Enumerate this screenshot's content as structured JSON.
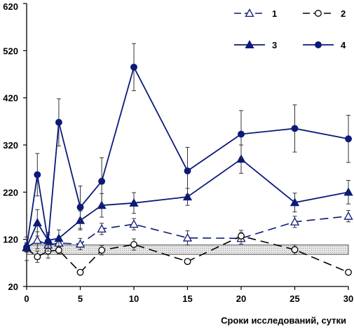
{
  "chart_data": {
    "type": "line",
    "title": "",
    "xlabel": "Сроки исследований, сутки",
    "ylabel": "",
    "xlim": [
      0,
      30
    ],
    "ylim": [
      20,
      620
    ],
    "xticks": [
      0,
      5,
      10,
      15,
      20,
      25,
      30
    ],
    "yticks": [
      20,
      120,
      220,
      320,
      420,
      520,
      620
    ],
    "x_tick_labels": [
      "0",
      "5",
      "10",
      "15",
      "20",
      "25",
      "30"
    ],
    "y_tick_labels": [
      "20",
      "120",
      "220",
      "320",
      "420",
      "520",
      "620"
    ],
    "reference_band": {
      "from": 88,
      "to": 108
    },
    "grid": false,
    "legend_position": "top-right",
    "x": [
      0,
      1,
      2,
      3,
      5,
      7,
      10,
      15,
      20,
      25,
      30
    ],
    "series": [
      {
        "name": "1",
        "color": "#0c1a78",
        "line_style": "dashed",
        "marker": "open-triangle",
        "values": [
          102,
          118,
          108,
          112,
          110,
          142,
          152,
          123,
          122,
          157,
          169
        ],
        "errors": [
          8,
          18,
          12,
          10,
          12,
          12,
          12,
          15,
          12,
          12,
          12
        ]
      },
      {
        "name": "2",
        "color": "#000000",
        "line_style": "dashed",
        "marker": "open-circle",
        "values": [
          100,
          83,
          95,
          97,
          50,
          97,
          109,
          73,
          127,
          98,
          50
        ],
        "errors": [
          25,
          12,
          15,
          8,
          5,
          10,
          12,
          5,
          12,
          10,
          5
        ]
      },
      {
        "name": "3",
        "color": "#0c1a78",
        "line_style": "solid",
        "marker": "filled-triangle",
        "values": [
          103,
          155,
          118,
          122,
          160,
          192,
          197,
          210,
          290,
          198,
          220
        ],
        "errors": [
          8,
          28,
          12,
          18,
          20,
          25,
          22,
          18,
          30,
          20,
          25
        ]
      },
      {
        "name": "4",
        "color": "#0c1a78",
        "line_style": "solid",
        "marker": "filled-circle",
        "values": [
          103,
          257,
          115,
          368,
          188,
          243,
          485,
          265,
          343,
          355,
          333
        ],
        "errors": [
          10,
          45,
          20,
          50,
          45,
          50,
          50,
          50,
          50,
          50,
          50
        ]
      }
    ]
  }
}
